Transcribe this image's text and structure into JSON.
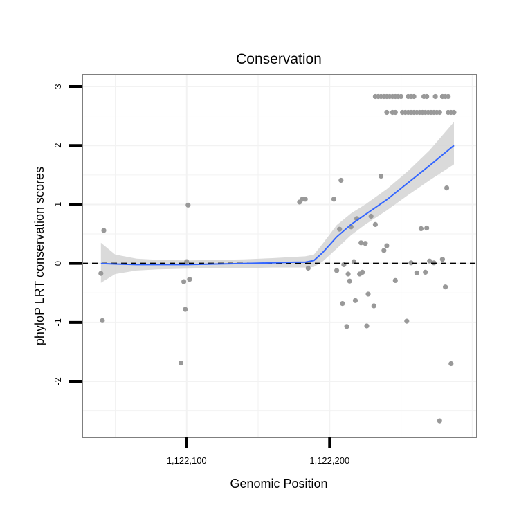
{
  "chart_data": {
    "type": "scatter",
    "title": "Conservation",
    "xlabel": "Genomic Position",
    "ylabel": "phyloP LRT conservation scores",
    "xlim": [
      1122027,
      1122303
    ],
    "ylim": [
      -2.95,
      3.2
    ],
    "x_ticks": [
      1122100,
      1122200
    ],
    "x_tick_labels": [
      "1,122,100",
      "1,122,200"
    ],
    "y_ticks": [
      -2,
      -1,
      0,
      1,
      2,
      3
    ],
    "y_tick_labels": [
      "-2",
      "-1",
      "0",
      "1",
      "2",
      "3"
    ],
    "grid": true,
    "reference_line": {
      "y": 0,
      "style": "dashed"
    },
    "colors": {
      "points": "#999999",
      "smooth_line": "#3366ff",
      "confidence_band": "#d4d4d4",
      "reference_line": "#000000",
      "grid": "#f2f2f2",
      "panel_border": "#7f7f7f"
    },
    "points": [
      {
        "x": 1122040,
        "y": -0.17
      },
      {
        "x": 1122041,
        "y": -0.97
      },
      {
        "x": 1122042,
        "y": 0.56
      },
      {
        "x": 1122096,
        "y": -1.69
      },
      {
        "x": 1122098,
        "y": -0.31
      },
      {
        "x": 1122099,
        "y": -0.78
      },
      {
        "x": 1122100,
        "y": 0.03
      },
      {
        "x": 1122101,
        "y": 0.99
      },
      {
        "x": 1122102,
        "y": -0.27
      },
      {
        "x": 1122179,
        "y": 1.04
      },
      {
        "x": 1122181,
        "y": 1.09
      },
      {
        "x": 1122183,
        "y": 1.09
      },
      {
        "x": 1122185,
        "y": -0.08
      },
      {
        "x": 1122203,
        "y": 1.09
      },
      {
        "x": 1122205,
        "y": -0.12
      },
      {
        "x": 1122207,
        "y": 0.58
      },
      {
        "x": 1122208,
        "y": 1.41
      },
      {
        "x": 1122209,
        "y": -0.68
      },
      {
        "x": 1122210,
        "y": -0.02
      },
      {
        "x": 1122212,
        "y": -1.07
      },
      {
        "x": 1122213,
        "y": -0.18
      },
      {
        "x": 1122214,
        "y": -0.3
      },
      {
        "x": 1122215,
        "y": 0.62
      },
      {
        "x": 1122217,
        "y": 0.03
      },
      {
        "x": 1122218,
        "y": -0.63
      },
      {
        "x": 1122219,
        "y": 0.76
      },
      {
        "x": 1122221,
        "y": -0.18
      },
      {
        "x": 1122222,
        "y": 0.35
      },
      {
        "x": 1122223,
        "y": -0.15
      },
      {
        "x": 1122225,
        "y": 0.34
      },
      {
        "x": 1122226,
        "y": -1.06
      },
      {
        "x": 1122227,
        "y": -0.52
      },
      {
        "x": 1122229,
        "y": 0.8
      },
      {
        "x": 1122231,
        "y": -0.72
      },
      {
        "x": 1122232,
        "y": 0.66
      },
      {
        "x": 1122236,
        "y": 1.48
      },
      {
        "x": 1122238,
        "y": 0.22
      },
      {
        "x": 1122240,
        "y": 0.3
      },
      {
        "x": 1122246,
        "y": -0.29
      },
      {
        "x": 1122254,
        "y": -0.98
      },
      {
        "x": 1122257,
        "y": 0.01
      },
      {
        "x": 1122261,
        "y": -0.16
      },
      {
        "x": 1122264,
        "y": 0.59
      },
      {
        "x": 1122267,
        "y": -0.15
      },
      {
        "x": 1122268,
        "y": 0.6
      },
      {
        "x": 1122270,
        "y": 0.04
      },
      {
        "x": 1122273,
        "y": 0.01
      },
      {
        "x": 1122277,
        "y": -2.67
      },
      {
        "x": 1122279,
        "y": 0.07
      },
      {
        "x": 1122281,
        "y": -0.4
      },
      {
        "x": 1122282,
        "y": 1.28
      },
      {
        "x": 1122285,
        "y": -1.7
      },
      {
        "x": 1122232,
        "y": 2.83
      },
      {
        "x": 1122234,
        "y": 2.83
      },
      {
        "x": 1122236,
        "y": 2.83
      },
      {
        "x": 1122238,
        "y": 2.83
      },
      {
        "x": 1122240,
        "y": 2.83
      },
      {
        "x": 1122242,
        "y": 2.83
      },
      {
        "x": 1122244,
        "y": 2.83
      },
      {
        "x": 1122246,
        "y": 2.83
      },
      {
        "x": 1122248,
        "y": 2.83
      },
      {
        "x": 1122250,
        "y": 2.83
      },
      {
        "x": 1122255,
        "y": 2.83
      },
      {
        "x": 1122257,
        "y": 2.83
      },
      {
        "x": 1122259,
        "y": 2.83
      },
      {
        "x": 1122266,
        "y": 2.83
      },
      {
        "x": 1122268,
        "y": 2.83
      },
      {
        "x": 1122274,
        "y": 2.83
      },
      {
        "x": 1122279,
        "y": 2.83
      },
      {
        "x": 1122281,
        "y": 2.83
      },
      {
        "x": 1122283,
        "y": 2.83
      },
      {
        "x": 1122240,
        "y": 2.56
      },
      {
        "x": 1122244,
        "y": 2.56
      },
      {
        "x": 1122246,
        "y": 2.56
      },
      {
        "x": 1122251,
        "y": 2.56
      },
      {
        "x": 1122253,
        "y": 2.56
      },
      {
        "x": 1122255,
        "y": 2.56
      },
      {
        "x": 1122257,
        "y": 2.56
      },
      {
        "x": 1122259,
        "y": 2.56
      },
      {
        "x": 1122261,
        "y": 2.56
      },
      {
        "x": 1122263,
        "y": 2.56
      },
      {
        "x": 1122265,
        "y": 2.56
      },
      {
        "x": 1122267,
        "y": 2.56
      },
      {
        "x": 1122269,
        "y": 2.56
      },
      {
        "x": 1122271,
        "y": 2.56
      },
      {
        "x": 1122273,
        "y": 2.56
      },
      {
        "x": 1122275,
        "y": 2.56
      },
      {
        "x": 1122277,
        "y": 2.56
      },
      {
        "x": 1122283,
        "y": 2.56
      },
      {
        "x": 1122285,
        "y": 2.56
      },
      {
        "x": 1122287,
        "y": 2.56
      }
    ],
    "smooth": {
      "x": [
        1122040,
        1122050,
        1122065,
        1122080,
        1122100,
        1122120,
        1122140,
        1122160,
        1122175,
        1122183,
        1122189,
        1122195,
        1122205,
        1122215,
        1122225,
        1122240,
        1122255,
        1122270,
        1122287
      ],
      "y": [
        0.0,
        -0.01,
        -0.02,
        -0.02,
        -0.02,
        -0.01,
        0.0,
        0.01,
        0.02,
        0.02,
        0.05,
        0.18,
        0.45,
        0.66,
        0.83,
        1.08,
        1.37,
        1.66,
        2.0
      ],
      "lower": [
        -0.33,
        -0.18,
        -0.12,
        -0.1,
        -0.09,
        -0.08,
        -0.08,
        -0.07,
        -0.07,
        -0.07,
        -0.06,
        0.03,
        0.25,
        0.48,
        0.66,
        0.9,
        1.16,
        1.41,
        1.68
      ],
      "upper": [
        0.35,
        0.15,
        0.08,
        0.06,
        0.05,
        0.06,
        0.07,
        0.09,
        0.11,
        0.12,
        0.15,
        0.33,
        0.65,
        0.85,
        1.0,
        1.26,
        1.57,
        1.92,
        2.4
      ]
    }
  }
}
